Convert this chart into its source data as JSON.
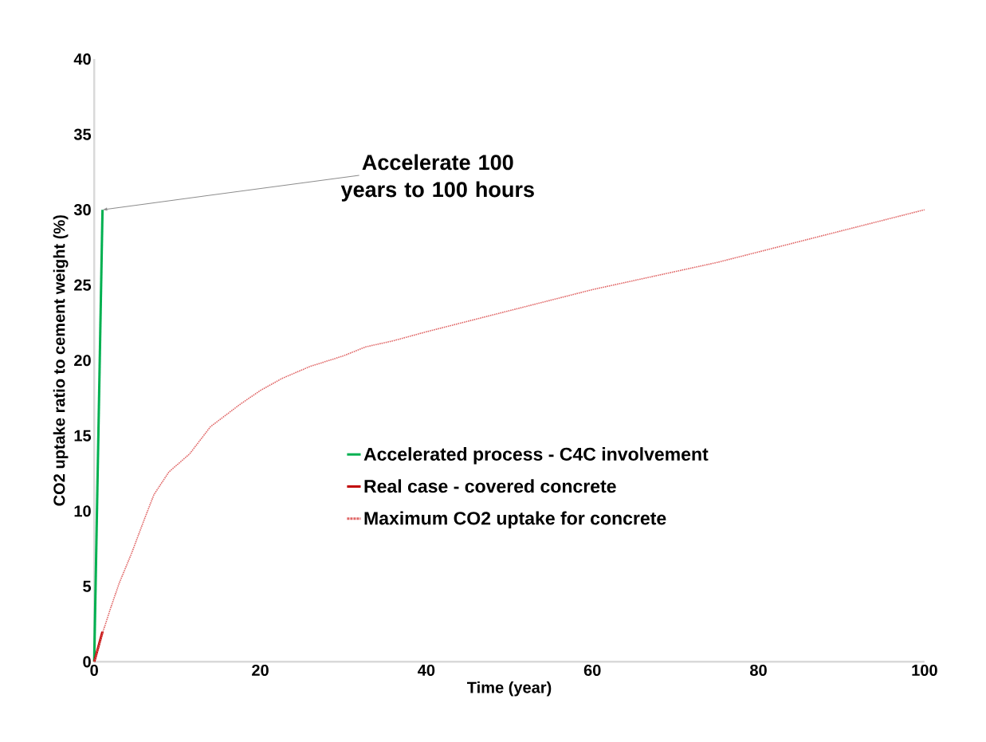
{
  "chart_data": {
    "type": "line",
    "xlabel": "Time (year)",
    "ylabel": "CO2 uptake ratio to cement weight (%)",
    "xlim": [
      0,
      100
    ],
    "ylim": [
      0,
      40
    ],
    "xticks": [
      0,
      20,
      40,
      60,
      80,
      100
    ],
    "yticks": [
      0,
      5,
      10,
      15,
      20,
      25,
      30,
      35,
      40
    ],
    "grid": false,
    "legend": "right",
    "marker": "none",
    "series": [
      {
        "name": "Accelerated process - C4C involvement",
        "color": "#00b050",
        "line_style": "solid",
        "x": [
          0,
          1
        ],
        "values": [
          0,
          30
        ]
      },
      {
        "name": "Real case - covered concrete",
        "color": "#c00000",
        "line_style": "solid",
        "x": [
          0,
          1
        ],
        "values": [
          0,
          2
        ]
      },
      {
        "name": "Maximum CO2 uptake for concrete",
        "color": "#e06666",
        "line_style": "dotted",
        "x": [
          0,
          1,
          2,
          3,
          4.5,
          6,
          7.2,
          9,
          11.5,
          14,
          17.6,
          20,
          22.6,
          26,
          30,
          32.7,
          36,
          40,
          45,
          50,
          55,
          60,
          65,
          70,
          75,
          80,
          85,
          90,
          95,
          100
        ],
        "values": [
          0,
          1.9,
          3.6,
          5.2,
          7.2,
          9.4,
          11.1,
          12.6,
          13.8,
          15.6,
          17.1,
          18.0,
          18.8,
          19.6,
          20.3,
          20.9,
          21.3,
          21.9,
          22.6,
          23.3,
          24.0,
          24.7,
          25.3,
          25.9,
          26.5,
          27.2,
          27.9,
          28.6,
          29.3,
          30.0
        ]
      }
    ],
    "annotations": [
      {
        "text": "Accelerate 100 years to 100 hours",
        "x": 1,
        "y": 30
      }
    ]
  }
}
